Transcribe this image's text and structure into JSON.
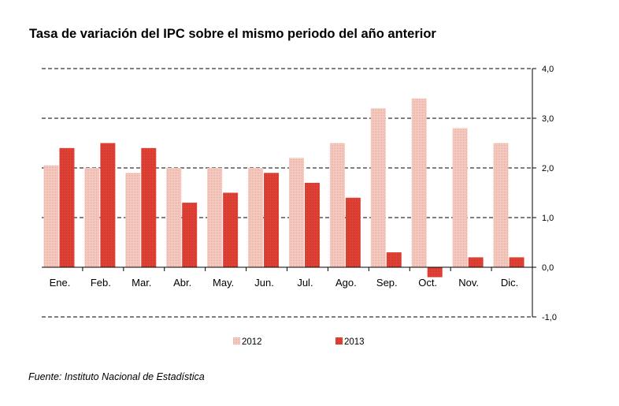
{
  "chart_data": {
    "type": "bar",
    "title": "Tasa de variación del IPC sobre el mismo periodo del año anterior",
    "categories": [
      "Ene.",
      "Feb.",
      "Mar.",
      "Abr.",
      "May.",
      "Jun.",
      "Jul.",
      "Ago.",
      "Sep.",
      "Oct.",
      "Nov.",
      "Dic."
    ],
    "series": [
      {
        "name": "2012",
        "color": "#f2b8ac",
        "values": [
          2.05,
          2.0,
          1.9,
          2.0,
          2.0,
          2.0,
          2.2,
          2.5,
          3.2,
          3.4,
          2.8,
          2.5
        ]
      },
      {
        "name": "2013",
        "color": "#e0382b",
        "values": [
          2.4,
          2.5,
          2.4,
          1.3,
          1.5,
          1.9,
          1.7,
          1.4,
          0.3,
          -0.2,
          0.2,
          0.2
        ]
      }
    ],
    "yticks": [
      "4,0",
      "3,0",
      "2,0",
      "1,0",
      "0,0",
      "-1,0"
    ],
    "ylim": [
      -1,
      4
    ],
    "y_axis_side": "right",
    "grid": "dashed",
    "legend": "bottom",
    "xlabel": "",
    "ylabel": ""
  },
  "source": "Fuente: Instituto Nacional de Estadística"
}
